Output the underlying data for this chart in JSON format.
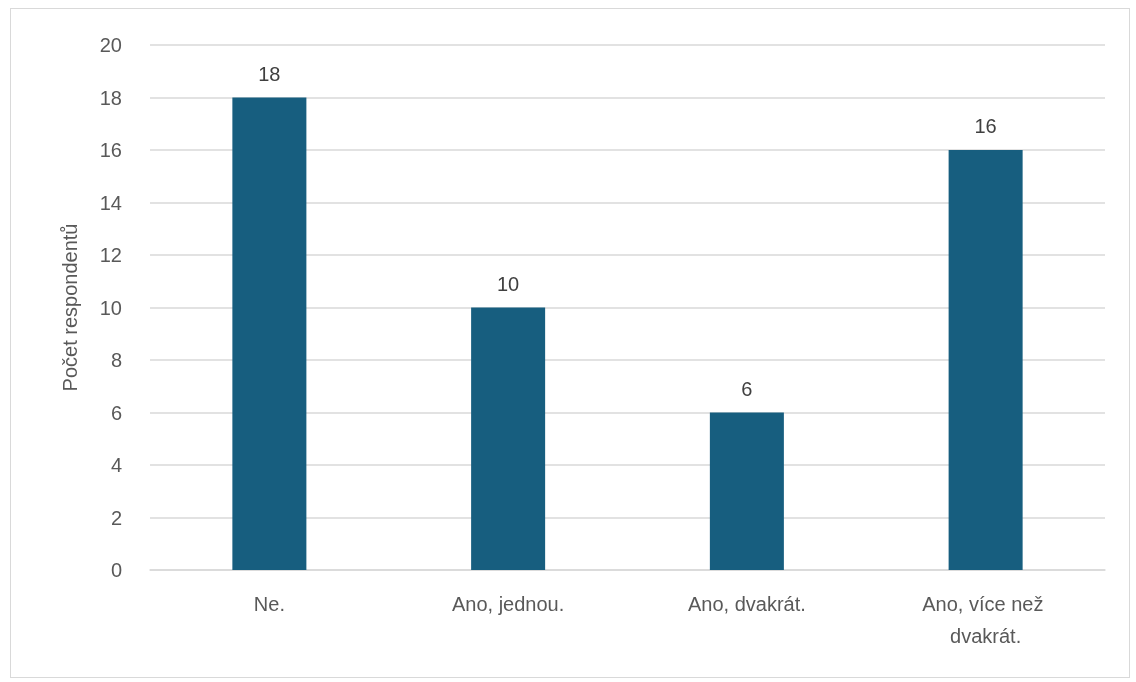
{
  "chart_data": {
    "type": "bar",
    "ylabel": "Počet respondentů",
    "categories": [
      "Ne.",
      "Ano, jednou.",
      "Ano, dvakrát.",
      "Ano, více než dvakrát."
    ],
    "values": [
      18,
      10,
      6,
      16
    ],
    "color": "#175e7f",
    "ylim": [
      0,
      20
    ],
    "yticks": [
      0,
      2,
      4,
      6,
      8,
      10,
      12,
      14,
      16,
      18,
      20
    ],
    "grid": "y",
    "data_labels": true
  }
}
